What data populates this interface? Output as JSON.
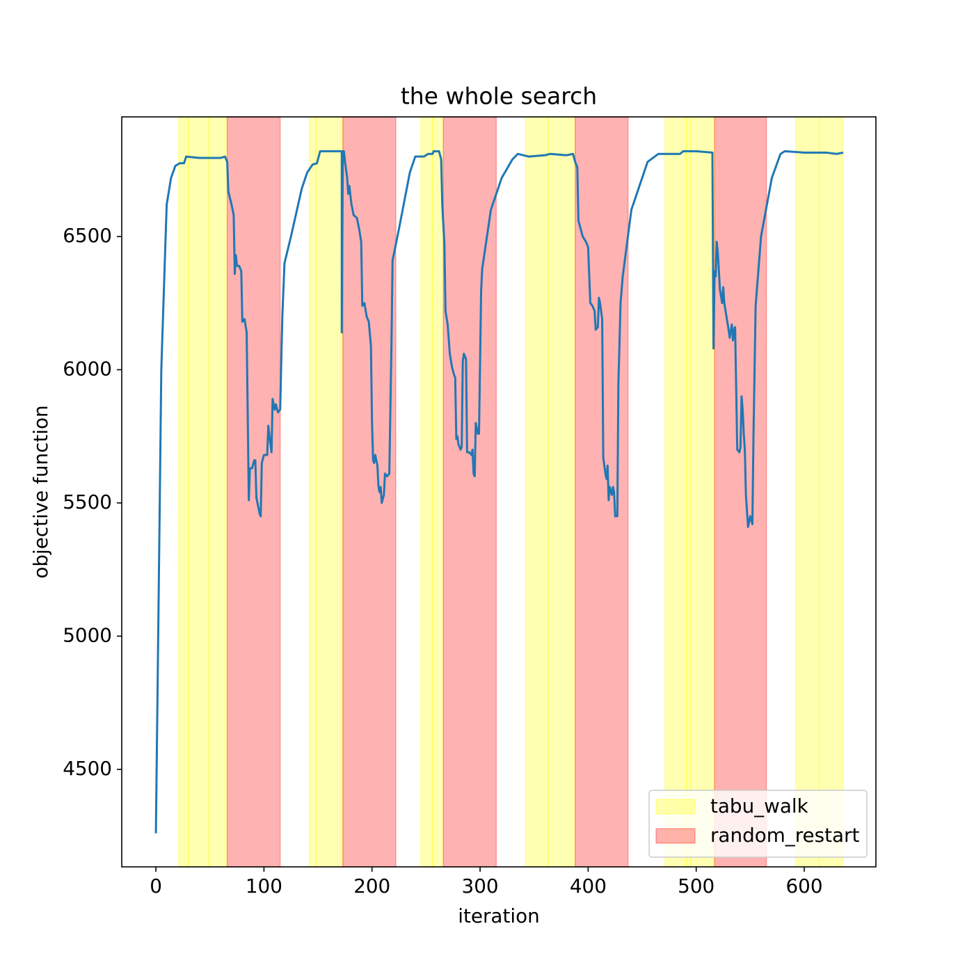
{
  "chart_data": {
    "type": "line",
    "title": "the whole search",
    "x_label": "iteration",
    "y_label": "objective function",
    "xlim": [
      -31.6,
      666.3
    ],
    "ylim": [
      4134,
      6949
    ],
    "xticks": [
      0,
      100,
      200,
      300,
      400,
      500,
      600
    ],
    "yticks": [
      4500,
      5000,
      5500,
      6000,
      6500
    ],
    "legend_position": "lower right",
    "spans": [
      {
        "name": "tabu_walk",
        "color": "#ffff00",
        "ranges": [
          [
            21,
            30
          ],
          [
            30,
            49
          ],
          [
            49,
            66
          ],
          [
            142,
            148
          ],
          [
            148,
            173
          ],
          [
            245,
            256
          ],
          [
            256,
            266
          ],
          [
            342,
            363
          ],
          [
            363,
            388
          ],
          [
            471,
            491
          ],
          [
            491,
            495
          ],
          [
            495,
            517
          ],
          [
            592,
            614
          ],
          [
            614,
            636
          ]
        ]
      },
      {
        "name": "random_restart",
        "color": "#ff0000",
        "ranges": [
          [
            66,
            115
          ],
          [
            173,
            222
          ],
          [
            266,
            315
          ],
          [
            388,
            437
          ],
          [
            517,
            565
          ]
        ]
      }
    ],
    "series": [
      {
        "color": "#1f77b4",
        "x": [
          0,
          5,
          9,
          10,
          14,
          18,
          22,
          26,
          28,
          40,
          50,
          60,
          64,
          66,
          67,
          70,
          72,
          73,
          74,
          75,
          77,
          79,
          80,
          82,
          84,
          86,
          87,
          89,
          91,
          92,
          93,
          96,
          97,
          98,
          100,
          103,
          104,
          106,
          107,
          108,
          110,
          111,
          113,
          115,
          117,
          119,
          125,
          135,
          140,
          145,
          149,
          152,
          160,
          172,
          172,
          173,
          174,
          175,
          177,
          178,
          179,
          181,
          183,
          186,
          188,
          190,
          191,
          193,
          195,
          197,
          199,
          200,
          201,
          202,
          203,
          205,
          206,
          207,
          208,
          209,
          211,
          212,
          214,
          216,
          218,
          219,
          225,
          235,
          240,
          248,
          252,
          256,
          257,
          262,
          264,
          265,
          267,
          268,
          270,
          272,
          274,
          276,
          277,
          278,
          279,
          280,
          282,
          283,
          284,
          285,
          287,
          288,
          290,
          292,
          293,
          294,
          295,
          296,
          298,
          299,
          301,
          302,
          310,
          320,
          330,
          335,
          345,
          360,
          365,
          380,
          386,
          388,
          390,
          391,
          395,
          398,
          400,
          402,
          404,
          406,
          407,
          409,
          410,
          411,
          413,
          414,
          415,
          416,
          417,
          418,
          419,
          420,
          422,
          423,
          424,
          425,
          427,
          428,
          430,
          432,
          440,
          455,
          465,
          485,
          488,
          500,
          515,
          516,
          517,
          518,
          519,
          520,
          522,
          524,
          525,
          526,
          528,
          530,
          531,
          533,
          534,
          535,
          536,
          538,
          540,
          541,
          542,
          543,
          544,
          545,
          546,
          548,
          550,
          552,
          553,
          555,
          560,
          570,
          578,
          582,
          600,
          620,
          630,
          636
        ],
        "values": [
          4260,
          6000,
          6500,
          6620,
          6720,
          6765,
          6775,
          6775,
          6800,
          6795,
          6795,
          6795,
          6800,
          6780,
          6670,
          6620,
          6580,
          6360,
          6430,
          6390,
          6390,
          6370,
          6180,
          6190,
          6140,
          5510,
          5630,
          5630,
          5660,
          5660,
          5520,
          5460,
          5450,
          5650,
          5680,
          5680,
          5790,
          5720,
          5690,
          5890,
          5850,
          5870,
          5840,
          5850,
          6200,
          6400,
          6500,
          6680,
          6740,
          6770,
          6775,
          6820,
          6820,
          6820,
          6140,
          6820,
          6820,
          6780,
          6720,
          6660,
          6690,
          6620,
          6580,
          6570,
          6530,
          6480,
          6240,
          6250,
          6200,
          6180,
          6090,
          5800,
          5660,
          5650,
          5680,
          5640,
          5560,
          5540,
          5560,
          5500,
          5530,
          5610,
          5600,
          5610,
          6100,
          6410,
          6530,
          6740,
          6800,
          6800,
          6810,
          6810,
          6820,
          6820,
          6790,
          6620,
          6470,
          6220,
          6170,
          6060,
          6010,
          5980,
          5970,
          5740,
          5750,
          5720,
          5700,
          5710,
          6030,
          6060,
          6040,
          5690,
          5690,
          5680,
          5700,
          5610,
          5600,
          5800,
          5760,
          5760,
          6300,
          6380,
          6600,
          6720,
          6790,
          6810,
          6800,
          6805,
          6810,
          6805,
          6810,
          6780,
          6760,
          6560,
          6500,
          6480,
          6460,
          6250,
          6240,
          6220,
          6150,
          6160,
          6270,
          6250,
          6190,
          5670,
          5640,
          5610,
          5590,
          5640,
          5510,
          5560,
          5530,
          5560,
          5540,
          5450,
          5450,
          5950,
          6250,
          6350,
          6600,
          6780,
          6810,
          6810,
          6820,
          6820,
          6815,
          6080,
          6370,
          6350,
          6480,
          6440,
          6300,
          6250,
          6310,
          6250,
          6200,
          6150,
          6120,
          6170,
          6110,
          6150,
          6160,
          5700,
          5690,
          5710,
          5900,
          5850,
          5760,
          5700,
          5530,
          5410,
          5450,
          5420,
          5750,
          6240,
          6500,
          6720,
          6810,
          6820,
          6815,
          6815,
          6810,
          6815
        ]
      }
    ]
  }
}
